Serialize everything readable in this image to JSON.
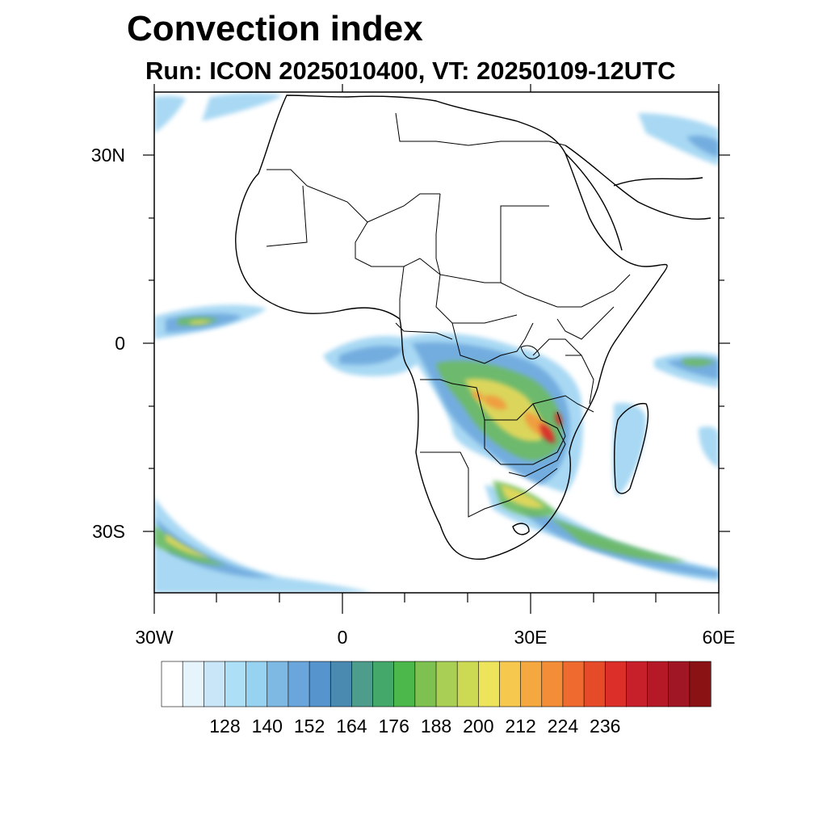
{
  "title": "Convection index",
  "subtitle": "Run: ICON 2025010400,  VT: 20250109-12UTC",
  "map": {
    "lon_range": [
      -30,
      60
    ],
    "lat_range": [
      -40,
      40
    ],
    "lat_tick_labels": [
      {
        "lat": 30,
        "label": "30N"
      },
      {
        "lat": 0,
        "label": "0"
      },
      {
        "lat": -30,
        "label": "30S"
      }
    ],
    "lon_tick_labels": [
      {
        "lon": -30,
        "label": "30W"
      },
      {
        "lon": 0,
        "label": "0"
      },
      {
        "lon": 30,
        "label": "30E"
      },
      {
        "lon": 60,
        "label": "60E"
      }
    ]
  },
  "colorbar": {
    "labels": [
      "128",
      "140",
      "152",
      "164",
      "176",
      "188",
      "200",
      "212",
      "224",
      "236"
    ],
    "colors": [
      "#ffffff",
      "#e6f4fc",
      "#c8e6f8",
      "#ade0f6",
      "#98d2f1",
      "#7eb9e4",
      "#6aa6dc",
      "#5594cc",
      "#4a89b0",
      "#4d9c8c",
      "#43a869",
      "#4cb84b",
      "#7ec151",
      "#a9cf55",
      "#ccd953",
      "#ede45c",
      "#f7c84e",
      "#f4a83f",
      "#f38d38",
      "#ee6a2e",
      "#e54b28",
      "#dc2f2a",
      "#c8202b",
      "#b51927",
      "#a11624",
      "#8a1214"
    ]
  },
  "colors": {
    "land_border": "#000000",
    "frame": "#000000"
  }
}
